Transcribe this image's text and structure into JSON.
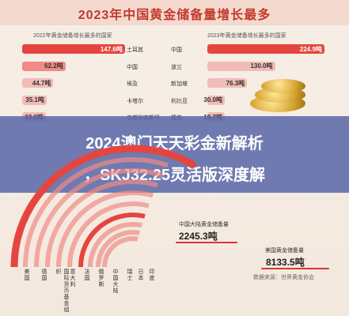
{
  "header": {
    "title": "2023年中国黄金储备量增长最多"
  },
  "chart_data": [
    {
      "type": "bar",
      "title": "2022年黄金储备增长最多的国家",
      "categories": [
        "土耳其",
        "中国",
        "埃及",
        "卡塔尔",
        "乌兹别克斯坦"
      ],
      "values": [
        147.6,
        62.2,
        44.7,
        35.1,
        33.9
      ],
      "value_labels": [
        "147.6吨",
        "62.2吨",
        "44.7吨",
        "35.1吨",
        "33.9吨"
      ],
      "colors": [
        "#e4463f",
        "#f18a83",
        "#f1bcb7",
        "#f1bcb7",
        "#f1bcb7"
      ],
      "xlim": [
        0,
        150
      ]
    },
    {
      "type": "bar",
      "title": "2023年黄金储备增长最多的国家",
      "categories": [
        "中国",
        "波兰",
        "新加坡",
        "利比亚",
        "捷克"
      ],
      "values": [
        224.9,
        130.0,
        76.3,
        30.0,
        18.7
      ],
      "value_labels": [
        "224.9吨",
        "130.0吨",
        "76.3吨",
        "30.0吨",
        "18.7吨"
      ],
      "colors": [
        "#e4463f",
        "#f1bcb7",
        "#f1bcb7",
        "#f1bcb7",
        "#f1bcb7"
      ],
      "xlim": [
        0,
        225
      ]
    },
    {
      "type": "bar",
      "subtype": "radial",
      "categories": [
        "美国",
        "德国",
        "国际货币基金组织",
        "意大利",
        "法国",
        "俄罗斯",
        "中国大陆",
        "瑞士",
        "日本",
        "印度"
      ],
      "annotations": [
        {
          "label": "中国大陆黄金储备量",
          "value": "2245.3吨"
        },
        {
          "label": "美国黄金储备量",
          "value": "8133.5吨"
        }
      ],
      "source": "数据来源：世界黄金协会"
    }
  ],
  "overlay": {
    "line1": "2024澳门天天彩金新解析",
    "line2": "，SKJ32.25灵活版深度解"
  },
  "colors": {
    "accent": "#e4463f",
    "soft": "#f1bcb7",
    "banner": "#5868a8"
  }
}
